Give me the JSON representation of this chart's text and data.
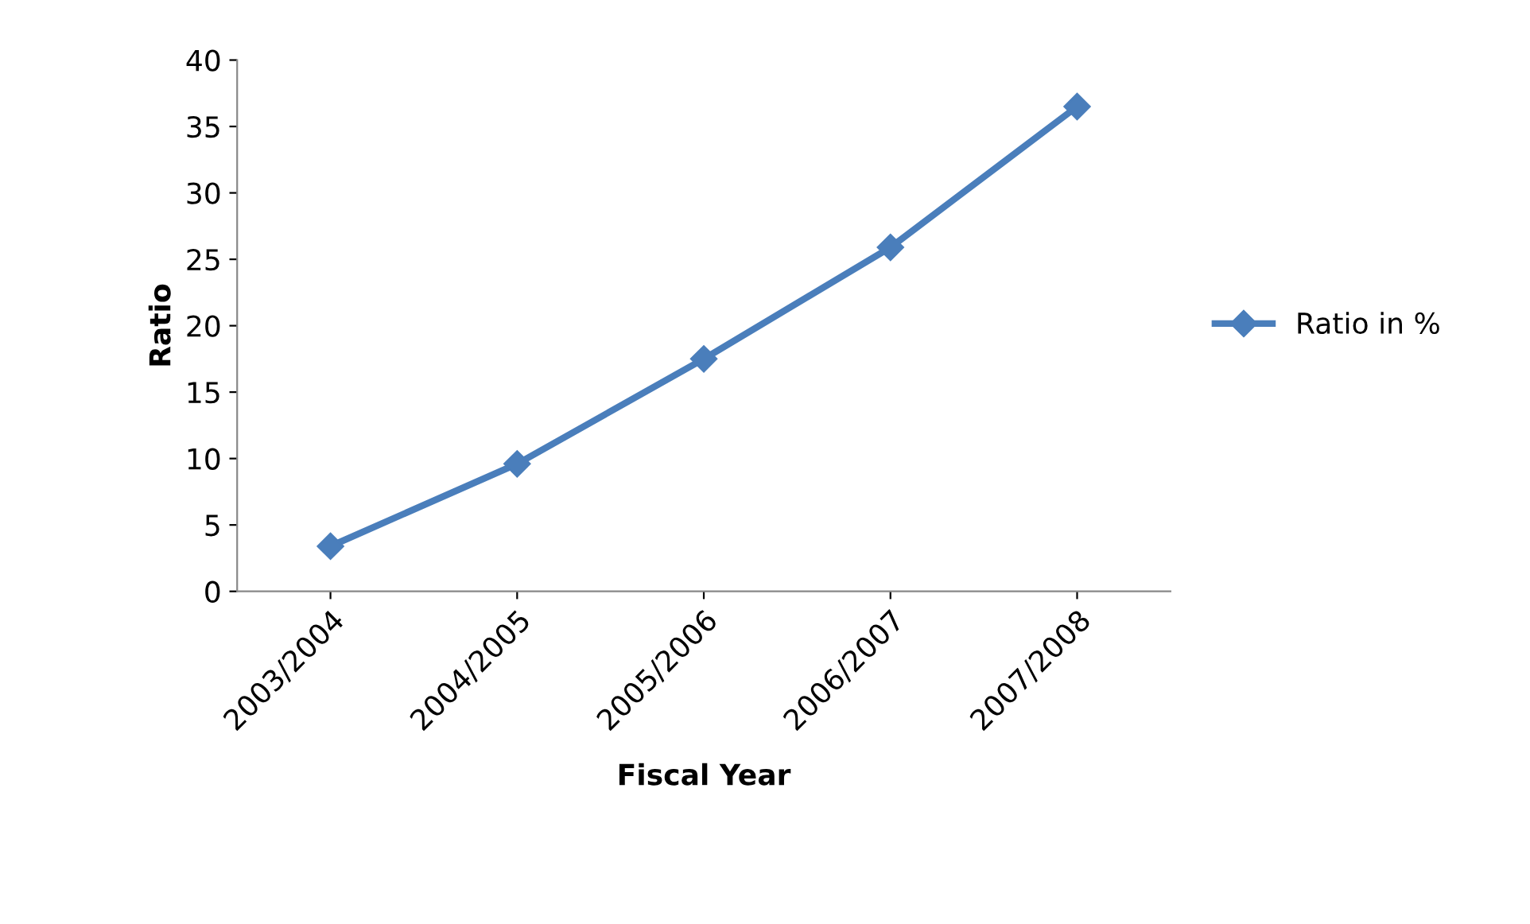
{
  "chart_data": {
    "type": "line",
    "xlabel": "Fiscal Year",
    "ylabel": "Ratio",
    "categories": [
      "2003/2004",
      "2004/2005",
      "2005/2006",
      "2006/2007",
      "2007/2008"
    ],
    "series": [
      {
        "name": "Ratio in %",
        "color": "#4a7ebb",
        "values": [
          3.4,
          9.6,
          17.5,
          25.9,
          36.5
        ]
      }
    ],
    "ylim": [
      0,
      40
    ],
    "yticks": [
      0,
      5,
      10,
      15,
      20,
      25,
      30,
      35,
      40
    ],
    "grid": false,
    "legend": "right",
    "marker": "diamond",
    "line_style": "solid"
  }
}
